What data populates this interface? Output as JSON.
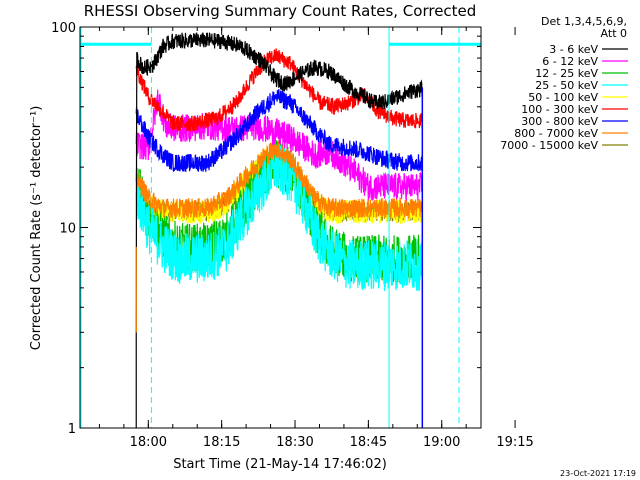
{
  "chart_data": {
    "type": "line",
    "title": "RHESSI Observing Summary Count Rates, Corrected",
    "xlabel": "Start Time (21-May-14 17:46:02)",
    "ylabel": "Corrected Count Rate (s⁻¹ detector⁻¹)",
    "y_scale": "log",
    "ylim": [
      1,
      100
    ],
    "xlim_minutes": [
      0,
      82
    ],
    "x_ticks": [
      {
        "label": "18:00",
        "value": 13.97
      },
      {
        "label": "18:15",
        "value": 28.97
      },
      {
        "label": "18:30",
        "value": 43.97
      },
      {
        "label": "18:45",
        "value": 58.97
      },
      {
        "label": "19:00",
        "value": 73.97
      },
      {
        "label": "19:15",
        "value": 88.97
      }
    ],
    "y_ticks": [
      {
        "label": "1",
        "value": 1
      },
      {
        "label": "10",
        "value": 10
      },
      {
        "label": "100",
        "value": 100
      }
    ],
    "legend": {
      "header": [
        "Det 1,3,4,5,6,9,",
        "Att 0"
      ],
      "placement": "right"
    },
    "series": [
      {
        "name": "3 - 6 keV",
        "color": "#000000",
        "noise": 0.04,
        "points": [
          [
            11.5,
            3
          ],
          [
            11.6,
            70
          ],
          [
            13,
            62
          ],
          [
            15,
            65
          ],
          [
            17,
            80
          ],
          [
            19,
            85
          ],
          [
            24,
            86
          ],
          [
            29,
            85
          ],
          [
            33,
            80
          ],
          [
            37,
            68
          ],
          [
            40,
            55
          ],
          [
            42,
            52
          ],
          [
            45,
            58
          ],
          [
            48,
            63
          ],
          [
            51,
            60
          ],
          [
            55,
            50
          ],
          [
            58,
            45
          ],
          [
            60,
            42
          ],
          [
            62,
            42
          ],
          [
            65,
            45
          ],
          [
            68,
            48
          ],
          [
            70,
            49
          ]
        ]
      },
      {
        "name": "6 - 12 keV",
        "color": "#ff00ff",
        "noise": 0.07,
        "points": [
          [
            11.5,
            26
          ],
          [
            14,
            25
          ],
          [
            16,
            45
          ],
          [
            17.5,
            32
          ],
          [
            20,
            31
          ],
          [
            26,
            32
          ],
          [
            32,
            31
          ],
          [
            36,
            32
          ],
          [
            40,
            30
          ],
          [
            43,
            28
          ],
          [
            46,
            25
          ],
          [
            48,
            23
          ],
          [
            51,
            24
          ],
          [
            54,
            21
          ],
          [
            57,
            18
          ],
          [
            59,
            16
          ],
          [
            62,
            16
          ],
          [
            66,
            16
          ],
          [
            70,
            16
          ]
        ]
      },
      {
        "name": "12 - 25 keV",
        "color": "#00c000",
        "noise": 0.12,
        "points": [
          [
            11.5,
            17
          ],
          [
            14,
            12
          ],
          [
            17,
            9
          ],
          [
            20,
            8
          ],
          [
            26,
            8
          ],
          [
            30,
            9
          ],
          [
            33,
            12
          ],
          [
            37,
            17
          ],
          [
            40,
            21
          ],
          [
            43,
            19
          ],
          [
            46,
            14
          ],
          [
            48,
            10
          ],
          [
            51,
            8
          ],
          [
            55,
            7
          ],
          [
            60,
            7
          ],
          [
            65,
            7
          ],
          [
            70,
            7
          ]
        ]
      },
      {
        "name": "25 - 50 keV",
        "color": "#00ffff",
        "noise": 0.13,
        "points": [
          [
            11.5,
            15
          ],
          [
            14,
            10
          ],
          [
            17,
            8
          ],
          [
            20,
            7
          ],
          [
            26,
            7
          ],
          [
            30,
            8
          ],
          [
            33,
            11
          ],
          [
            37,
            16
          ],
          [
            40,
            20
          ],
          [
            43,
            18
          ],
          [
            46,
            13
          ],
          [
            48,
            9.5
          ],
          [
            51,
            7.5
          ],
          [
            55,
            6.5
          ],
          [
            60,
            6.5
          ],
          [
            65,
            6.5
          ],
          [
            70,
            6.5
          ]
        ]
      },
      {
        "name": "50 - 100 keV",
        "color": "#ffff00",
        "noise": 0.06,
        "points": [
          [
            11.5,
            17
          ],
          [
            14,
            13
          ],
          [
            17,
            12
          ],
          [
            26,
            12
          ],
          [
            30,
            13
          ],
          [
            33,
            16
          ],
          [
            37,
            21
          ],
          [
            40,
            23
          ],
          [
            43,
            20
          ],
          [
            46,
            16
          ],
          [
            48,
            13
          ],
          [
            51,
            12
          ],
          [
            60,
            12
          ],
          [
            70,
            12
          ]
        ]
      },
      {
        "name": "100 - 300 keV",
        "color": "#ff0000",
        "noise": 0.04,
        "points": [
          [
            11.5,
            62
          ],
          [
            14,
            45
          ],
          [
            16,
            40
          ],
          [
            19,
            33
          ],
          [
            23,
            33
          ],
          [
            28,
            35
          ],
          [
            32,
            42
          ],
          [
            35,
            55
          ],
          [
            38,
            68
          ],
          [
            40,
            72
          ],
          [
            43,
            66
          ],
          [
            46,
            52
          ],
          [
            49,
            42
          ],
          [
            52,
            40
          ],
          [
            55,
            42
          ],
          [
            58,
            46
          ],
          [
            61,
            38
          ],
          [
            64,
            35
          ],
          [
            67,
            34
          ],
          [
            70,
            34
          ]
        ]
      },
      {
        "name": "300 - 800 keV",
        "color": "#0000ff",
        "noise": 0.045,
        "points": [
          [
            11.5,
            37
          ],
          [
            14,
            28
          ],
          [
            17,
            23
          ],
          [
            19,
            21
          ],
          [
            26,
            21
          ],
          [
            29,
            24
          ],
          [
            33,
            30
          ],
          [
            36,
            37
          ],
          [
            40,
            45
          ],
          [
            43,
            42
          ],
          [
            46,
            35
          ],
          [
            49,
            29
          ],
          [
            51,
            26
          ],
          [
            55,
            25
          ],
          [
            58,
            24
          ],
          [
            62,
            22
          ],
          [
            66,
            21
          ],
          [
            70,
            21
          ]
        ]
      },
      {
        "name": "800 - 7000 keV",
        "color": "#ff8000",
        "noise": 0.05,
        "points": [
          [
            11.5,
            18
          ],
          [
            14,
            14
          ],
          [
            17,
            12.5
          ],
          [
            26,
            12.5
          ],
          [
            30,
            14
          ],
          [
            33,
            17
          ],
          [
            37,
            22
          ],
          [
            40,
            25
          ],
          [
            43,
            22
          ],
          [
            46,
            17
          ],
          [
            48,
            14
          ],
          [
            51,
            12.5
          ],
          [
            60,
            12.5
          ],
          [
            70,
            12.5
          ]
        ]
      },
      {
        "name": "7000 - 15000 keV",
        "color": "#808000",
        "noise": 0.05,
        "points": [
          [
            11.5,
            17
          ],
          [
            14,
            13
          ],
          [
            17,
            12
          ],
          [
            26,
            12
          ],
          [
            30,
            13
          ],
          [
            33,
            16
          ],
          [
            37,
            21
          ],
          [
            40,
            23
          ],
          [
            43,
            20
          ],
          [
            46,
            16
          ],
          [
            48,
            13
          ],
          [
            51,
            12
          ],
          [
            60,
            12
          ],
          [
            70,
            12
          ]
        ]
      }
    ],
    "attenuator_bars": [
      {
        "from": 0,
        "to": 14.6,
        "value": 82,
        "color": "#00ffff"
      },
      {
        "from": 63.2,
        "to": 82,
        "value": 82,
        "color": "#00ffff"
      }
    ],
    "vertical_markers": [
      {
        "value": 0.2,
        "color": "#00ffff",
        "style": "solid"
      },
      {
        "value": 14.6,
        "color": "#00ffff",
        "style": "dashed"
      },
      {
        "value": 63.2,
        "color": "#00ffff",
        "style": "solid"
      },
      {
        "value": 77.5,
        "color": "#00ffff",
        "style": "dashed"
      }
    ],
    "data_end_minute": 70
  },
  "timestamp": "23-Oct-2021 17:19"
}
